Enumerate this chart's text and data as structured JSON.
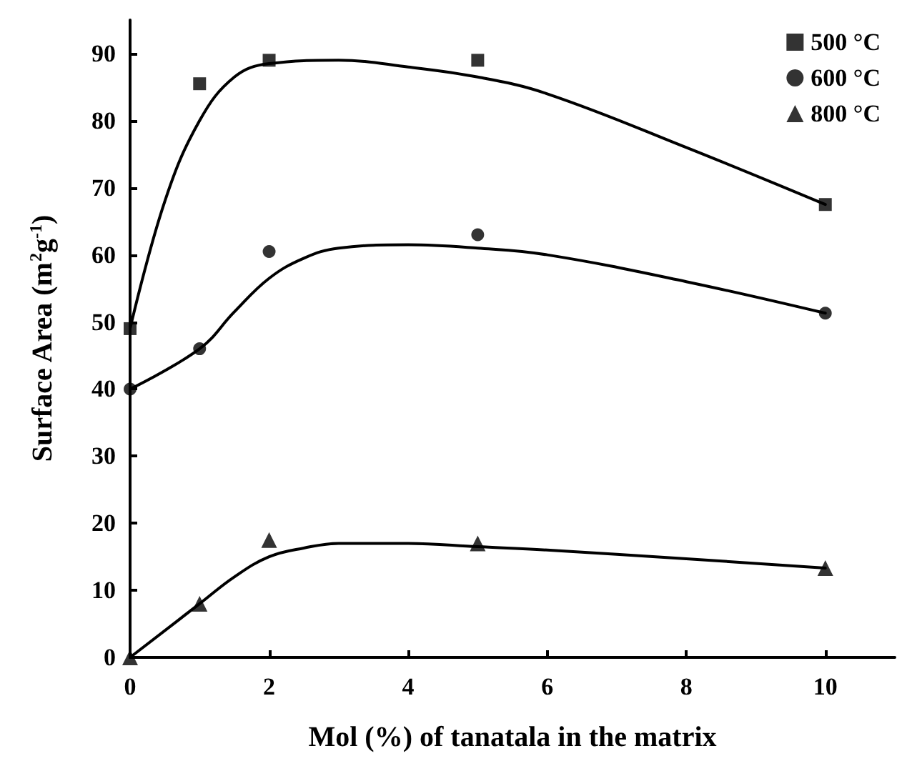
{
  "chart_data": {
    "type": "scatter",
    "xlabel": "Mol (%) of tanatala in the matrix",
    "ylabel": "Surface Area (m$^{2}$g$^{-1}$)",
    "xlim": [
      0,
      11
    ],
    "xticks": [
      0,
      2,
      4,
      6,
      8,
      10
    ],
    "ylim": [
      0,
      95
    ],
    "yticks": [
      0,
      10,
      20,
      30,
      40,
      50,
      60,
      70,
      80,
      90
    ],
    "grid": false,
    "legend": "top right",
    "series": [
      {
        "name": "500 °C",
        "color": "#000000",
        "marker": "square",
        "x": [
          0,
          1,
          2,
          5,
          10
        ],
        "values": [
          49,
          85.5,
          89,
          89,
          67.5
        ]
      },
      {
        "name": "600 °C",
        "color": "#000000",
        "marker": "circle",
        "x": [
          0,
          1,
          2,
          5,
          10
        ],
        "values": [
          40,
          46,
          60.5,
          63,
          51.3
        ]
      },
      {
        "name": "800 °C",
        "color": "#000000",
        "marker": "triangle",
        "x": [
          0,
          1,
          2,
          5,
          10
        ],
        "values": [
          0,
          8,
          17.5,
          17,
          13.3
        ]
      },
      {
        "type": "line",
        "color": "#000000",
        "marker": "none",
        "line_style": "solid",
        "x": [
          0,
          0.5,
          1,
          1.5,
          2,
          3,
          4,
          5,
          6,
          8,
          10
        ],
        "values": [
          49,
          68,
          80,
          86.5,
          88.5,
          89,
          88,
          86.5,
          84,
          76,
          67.5
        ]
      },
      {
        "type": "line",
        "color": "#000000",
        "marker": "none",
        "line_style": "solid",
        "x": [
          0,
          1,
          1.5,
          2,
          2.5,
          3,
          4,
          5,
          6,
          8,
          10
        ],
        "values": [
          40,
          46,
          51.5,
          56.5,
          59.5,
          61,
          61.5,
          61,
          60,
          56,
          51.3
        ]
      },
      {
        "type": "line",
        "color": "#000000",
        "marker": "none",
        "line_style": "solid",
        "x": [
          0,
          1,
          1.5,
          2,
          2.5,
          3,
          4,
          5,
          6,
          8,
          10
        ],
        "values": [
          0,
          8,
          12,
          15,
          16.3,
          17,
          17,
          16.5,
          16,
          14.7,
          13.3
        ]
      }
    ]
  }
}
